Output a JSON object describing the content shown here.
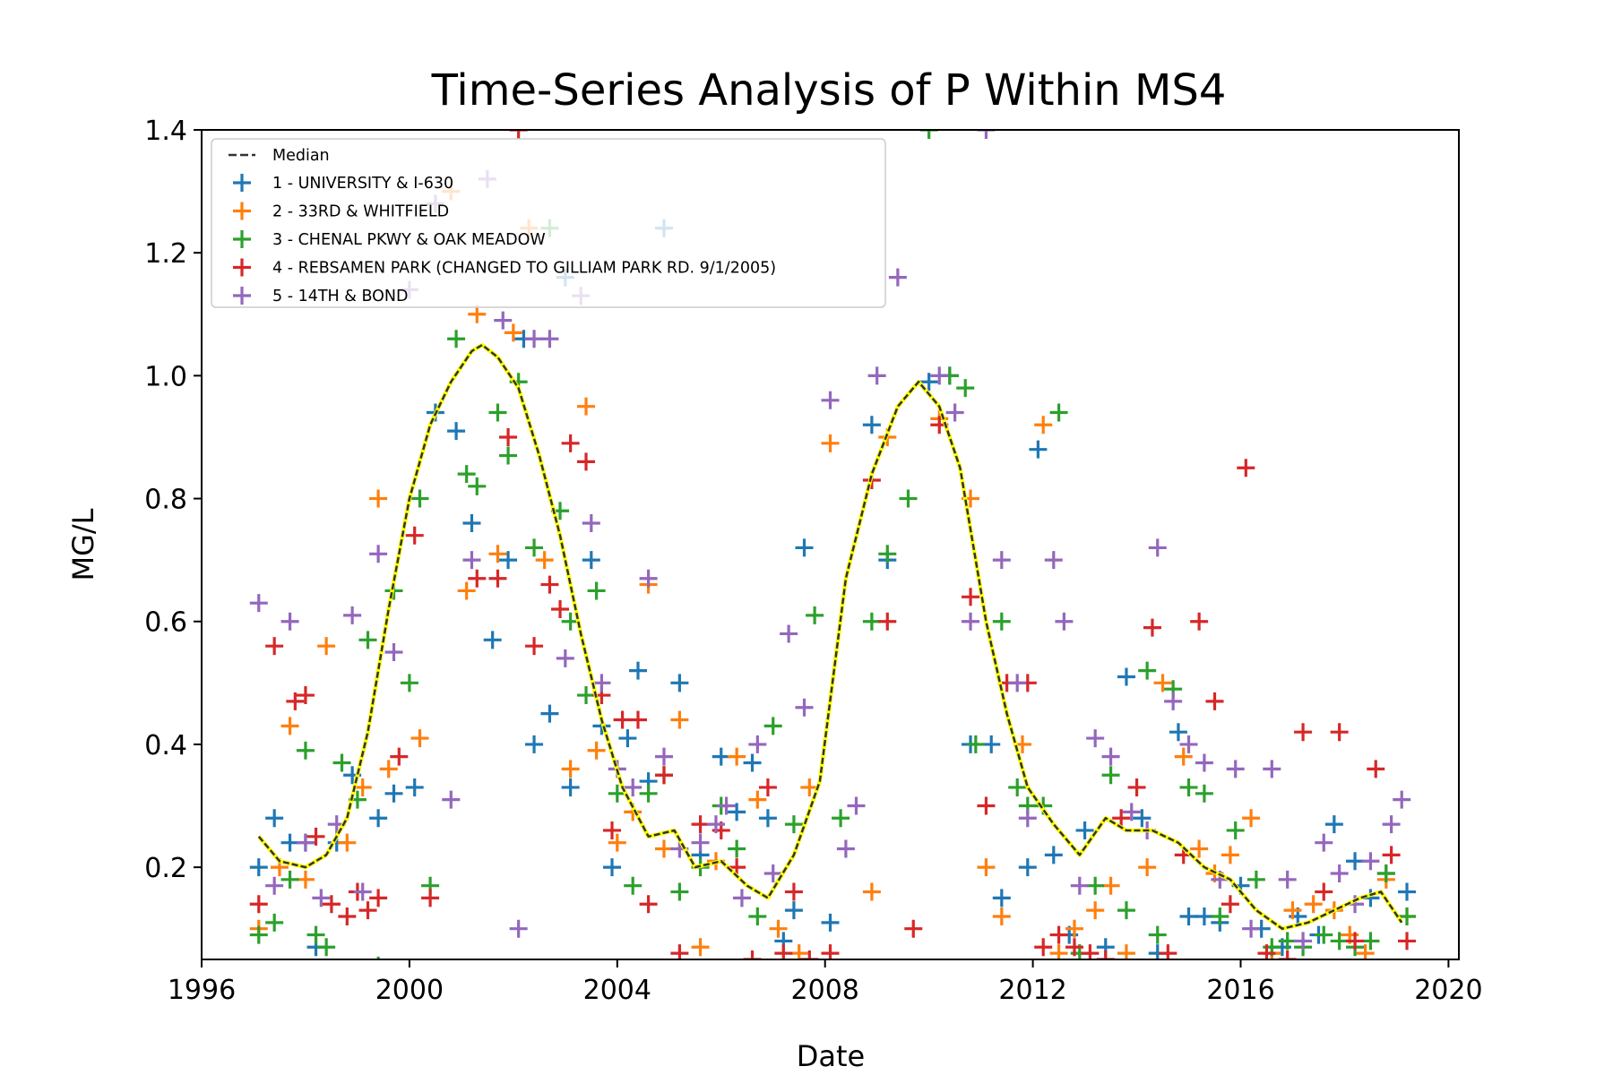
{
  "chart_data": {
    "type": "scatter",
    "title": "Time-Series Analysis of P Within MS4",
    "xlabel": "Date",
    "ylabel": "MG/L",
    "xlim": [
      1996,
      2020.2
    ],
    "ylim": [
      0.05,
      1.4
    ],
    "x_ticks": [
      1996,
      2000,
      2004,
      2008,
      2012,
      2016,
      2020
    ],
    "x_tick_labels": [
      "1996",
      "2000",
      "2004",
      "2008",
      "2012",
      "2016",
      "2020"
    ],
    "y_ticks": [
      0.2,
      0.4,
      0.6,
      0.8,
      1.0,
      1.2,
      1.4
    ],
    "y_tick_labels": [
      "0.2",
      "0.4",
      "0.6",
      "0.8",
      "1.0",
      "1.2",
      "1.4"
    ],
    "legend_position": "upper-left",
    "median": {
      "name": "Median",
      "color": "#333333",
      "highlight_color": "#ffff00",
      "x": [
        1997.1,
        1997.5,
        1998.0,
        1998.4,
        1998.8,
        1999.2,
        1999.6,
        2000.0,
        2000.4,
        2000.8,
        2001.2,
        2001.4,
        2001.7,
        2002.1,
        2002.5,
        2002.9,
        2003.3,
        2003.7,
        2004.1,
        2004.6,
        2005.1,
        2005.5,
        2006.0,
        2006.5,
        2006.9,
        2007.4,
        2007.9,
        2008.4,
        2008.9,
        2009.4,
        2009.8,
        2010.2,
        2010.6,
        2011.1,
        2011.5,
        2011.9,
        2012.4,
        2012.9,
        2013.4,
        2013.8,
        2014.3,
        2014.8,
        2015.3,
        2015.8,
        2016.3,
        2016.8,
        2017.3,
        2017.8,
        2018.3,
        2018.7,
        2019.1
      ],
      "y": [
        0.25,
        0.21,
        0.2,
        0.22,
        0.28,
        0.42,
        0.62,
        0.8,
        0.92,
        0.99,
        1.04,
        1.05,
        1.03,
        0.98,
        0.87,
        0.74,
        0.58,
        0.44,
        0.33,
        0.25,
        0.26,
        0.2,
        0.21,
        0.17,
        0.15,
        0.22,
        0.34,
        0.67,
        0.84,
        0.95,
        0.99,
        0.95,
        0.85,
        0.6,
        0.45,
        0.33,
        0.27,
        0.22,
        0.28,
        0.26,
        0.26,
        0.24,
        0.2,
        0.18,
        0.13,
        0.1,
        0.11,
        0.13,
        0.15,
        0.16,
        0.11
      ]
    },
    "series": [
      {
        "name": "1 - UNIVERSITY & I-630",
        "color": "#1f77b4",
        "x": [
          1997.1,
          1997.4,
          1997.7,
          1998.0,
          1998.2,
          1998.6,
          1998.9,
          1999.4,
          1999.7,
          2000.1,
          2000.5,
          2000.9,
          2001.2,
          2001.6,
          2001.9,
          2002.2,
          2002.4,
          2002.7,
          2003.0,
          2003.1,
          2003.5,
          2003.7,
          2003.9,
          2004.2,
          2004.4,
          2004.6,
          2004.9,
          2005.2,
          2005.6,
          2006.0,
          2006.3,
          2006.6,
          2006.9,
          2007.2,
          2007.4,
          2007.6,
          2008.1,
          2008.9,
          2009.2,
          2010.0,
          2010.4,
          2010.8,
          2011.2,
          2011.4,
          2011.9,
          2012.1,
          2012.4,
          2012.7,
          2013.0,
          2013.4,
          2013.8,
          2014.1,
          2014.4,
          2014.8,
          2015.0,
          2015.3,
          2015.6,
          2016.0,
          2016.4,
          2016.8,
          2017.1,
          2017.5,
          2017.8,
          2018.2,
          2018.5,
          2018.8,
          2019.2
        ],
        "y": [
          0.2,
          0.28,
          0.24,
          0.24,
          0.07,
          0.24,
          0.35,
          0.28,
          0.32,
          0.33,
          0.94,
          0.91,
          0.76,
          0.57,
          0.7,
          1.06,
          0.4,
          0.45,
          1.16,
          0.33,
          0.7,
          0.43,
          0.2,
          0.41,
          0.52,
          0.34,
          1.24,
          0.5,
          0.22,
          0.38,
          0.29,
          0.37,
          0.28,
          0.08,
          0.13,
          0.72,
          0.11,
          0.92,
          0.7,
          0.99,
          1.0,
          0.4,
          0.4,
          0.15,
          0.2,
          0.88,
          0.22,
          0.09,
          0.26,
          0.07,
          0.51,
          0.28,
          0.06,
          0.42,
          0.12,
          0.12,
          0.11,
          0.17,
          0.1,
          0.07,
          0.12,
          0.09,
          0.27,
          0.21,
          0.15,
          0.19,
          0.16
        ]
      },
      {
        "name": "2 - 33RD & WHITFIELD",
        "color": "#ff7f0e",
        "x": [
          1997.1,
          1997.5,
          1997.7,
          1998.0,
          1998.4,
          1998.8,
          1999.1,
          1999.4,
          1999.6,
          2000.2,
          2000.8,
          2001.1,
          2001.3,
          2001.7,
          2002.0,
          2002.3,
          2002.6,
          2003.1,
          2003.4,
          2003.6,
          2004.0,
          2004.3,
          2004.6,
          2004.9,
          2005.2,
          2005.6,
          2005.9,
          2006.3,
          2006.7,
          2007.1,
          2007.5,
          2007.7,
          2008.1,
          2008.9,
          2009.2,
          2010.2,
          2010.8,
          2011.1,
          2011.4,
          2011.8,
          2012.2,
          2012.5,
          2012.8,
          2013.2,
          2013.5,
          2013.8,
          2014.2,
          2014.5,
          2014.9,
          2015.2,
          2015.5,
          2015.8,
          2016.2,
          2016.6,
          2017.0,
          2017.4,
          2017.8,
          2018.1,
          2018.4,
          2018.8,
          2019.2
        ],
        "y": [
          0.1,
          0.2,
          0.43,
          0.18,
          0.56,
          0.24,
          0.33,
          0.8,
          0.36,
          0.41,
          1.3,
          0.65,
          1.1,
          0.71,
          1.07,
          1.24,
          0.7,
          0.36,
          0.95,
          0.39,
          0.24,
          0.29,
          0.66,
          0.23,
          0.44,
          0.07,
          0.21,
          0.38,
          0.31,
          0.1,
          0.06,
          0.33,
          0.89,
          0.16,
          0.9,
          0.93,
          0.8,
          0.2,
          0.12,
          0.4,
          0.92,
          0.06,
          0.1,
          0.13,
          0.17,
          0.06,
          0.2,
          0.5,
          0.38,
          0.23,
          0.19,
          0.22,
          0.28,
          0.06,
          0.13,
          0.14,
          0.13,
          0.09,
          0.06,
          0.18,
          0.12
        ]
      },
      {
        "name": "3 - CHENAL PKWY & OAK MEADOW",
        "color": "#2ca02c",
        "x": [
          1997.1,
          1997.4,
          1997.7,
          1998.0,
          1998.2,
          1998.4,
          1998.7,
          1999.0,
          1999.2,
          1999.4,
          1999.7,
          2000.0,
          2000.2,
          2000.4,
          2000.9,
          2001.1,
          2001.3,
          2001.7,
          2001.9,
          2002.1,
          2002.4,
          2002.7,
          2002.9,
          2003.1,
          2003.4,
          2003.6,
          2004.0,
          2004.3,
          2004.6,
          2004.9,
          2005.2,
          2005.6,
          2006.0,
          2006.3,
          2006.7,
          2007.0,
          2007.4,
          2007.8,
          2008.3,
          2008.9,
          2009.2,
          2009.6,
          2010.0,
          2010.4,
          2010.7,
          2010.9,
          2011.4,
          2011.7,
          2011.9,
          2012.2,
          2012.5,
          2012.9,
          2013.2,
          2013.5,
          2013.8,
          2014.2,
          2014.4,
          2014.7,
          2015.0,
          2015.3,
          2015.6,
          2015.9,
          2016.3,
          2016.6,
          2016.9,
          2017.2,
          2017.6,
          2017.9,
          2018.2,
          2018.5,
          2018.8,
          2019.2
        ],
        "y": [
          0.09,
          0.11,
          0.18,
          0.39,
          0.09,
          0.07,
          0.37,
          0.31,
          0.57,
          0.04,
          0.65,
          0.5,
          0.8,
          0.17,
          1.06,
          0.84,
          0.82,
          0.94,
          0.87,
          0.99,
          0.72,
          1.24,
          0.78,
          0.6,
          0.48,
          0.65,
          0.32,
          0.17,
          0.32,
          0.35,
          0.16,
          0.2,
          0.3,
          0.23,
          0.12,
          0.43,
          0.27,
          0.61,
          0.28,
          0.6,
          0.71,
          0.8,
          1.4,
          1.0,
          0.98,
          0.4,
          0.6,
          0.33,
          0.3,
          0.3,
          0.94,
          0.06,
          0.17,
          0.35,
          0.13,
          0.52,
          0.09,
          0.49,
          0.33,
          0.32,
          0.12,
          0.26,
          0.18,
          0.07,
          0.08,
          0.07,
          0.09,
          0.08,
          0.07,
          0.08,
          0.19,
          0.12
        ]
      },
      {
        "name": "4 - REBSAMEN PARK (CHANGED TO GILLIAM PARK RD. 9/1/2005)",
        "color": "#d62728",
        "x": [
          1997.1,
          1997.4,
          1997.8,
          1998.0,
          1998.2,
          1998.5,
          1998.8,
          1999.0,
          1999.2,
          1999.4,
          1999.8,
          2000.1,
          2000.4,
          2001.3,
          2001.7,
          2001.9,
          2002.1,
          2002.4,
          2002.7,
          2002.9,
          2003.1,
          2003.4,
          2003.7,
          2003.9,
          2004.1,
          2004.4,
          2004.6,
          2004.9,
          2005.2,
          2005.6,
          2006.0,
          2006.3,
          2006.6,
          2006.9,
          2007.2,
          2007.4,
          2007.7,
          2008.1,
          2008.9,
          2009.2,
          2009.7,
          2010.2,
          2010.8,
          2011.1,
          2011.5,
          2011.9,
          2012.2,
          2012.5,
          2012.8,
          2013.1,
          2013.4,
          2013.7,
          2014.0,
          2014.3,
          2014.6,
          2014.9,
          2015.2,
          2015.5,
          2015.8,
          2016.1,
          2016.5,
          2016.9,
          2017.2,
          2017.6,
          2017.9,
          2018.2,
          2018.6,
          2018.9,
          2019.2
        ],
        "y": [
          0.14,
          0.56,
          0.47,
          0.48,
          0.25,
          0.14,
          0.12,
          0.16,
          0.13,
          0.15,
          0.38,
          0.74,
          0.15,
          0.67,
          0.67,
          0.9,
          1.4,
          0.56,
          0.66,
          0.62,
          0.89,
          0.86,
          0.48,
          0.26,
          0.44,
          0.44,
          0.14,
          0.35,
          0.06,
          0.27,
          0.26,
          0.2,
          0.05,
          0.33,
          0.06,
          0.16,
          0.05,
          0.06,
          0.83,
          0.6,
          0.1,
          0.92,
          0.64,
          0.3,
          0.5,
          0.5,
          0.07,
          0.09,
          0.07,
          0.06,
          0.05,
          0.28,
          0.33,
          0.59,
          0.06,
          0.22,
          0.6,
          0.47,
          0.14,
          0.85,
          0.06,
          0.05,
          0.42,
          0.16,
          0.42,
          0.08,
          0.36,
          0.22,
          0.08
        ]
      },
      {
        "name": "5 - 14TH & BOND",
        "color": "#9467bd",
        "x": [
          1997.1,
          1997.4,
          1997.7,
          1998.0,
          1998.3,
          1998.6,
          1998.9,
          1999.1,
          1999.4,
          1999.7,
          2000.0,
          2000.5,
          2000.8,
          2001.2,
          2001.5,
          2001.8,
          2002.1,
          2002.4,
          2002.7,
          2003.0,
          2003.3,
          2003.5,
          2003.7,
          2004.0,
          2004.3,
          2004.6,
          2004.9,
          2005.2,
          2005.6,
          2005.9,
          2006.1,
          2006.4,
          2006.7,
          2007.0,
          2007.3,
          2007.6,
          2008.1,
          2008.4,
          2008.6,
          2009.0,
          2009.4,
          2010.2,
          2010.5,
          2010.8,
          2011.1,
          2011.4,
          2011.7,
          2011.9,
          2012.4,
          2012.6,
          2012.9,
          2013.2,
          2013.5,
          2013.9,
          2014.2,
          2014.4,
          2014.7,
          2015.0,
          2015.3,
          2015.6,
          2015.9,
          2016.2,
          2016.6,
          2016.9,
          2017.2,
          2017.6,
          2017.9,
          2018.2,
          2018.5,
          2018.9,
          2019.1
        ],
        "y": [
          0.63,
          0.17,
          0.6,
          0.24,
          0.15,
          0.27,
          0.61,
          0.16,
          0.71,
          0.55,
          1.14,
          1.28,
          0.31,
          0.7,
          1.32,
          1.09,
          0.1,
          1.06,
          1.06,
          0.54,
          1.13,
          0.76,
          0.5,
          0.36,
          0.33,
          0.67,
          0.38,
          0.23,
          0.24,
          0.27,
          0.3,
          0.15,
          0.4,
          0.19,
          0.58,
          0.46,
          0.96,
          0.23,
          0.3,
          1.0,
          1.16,
          1.0,
          0.94,
          0.6,
          1.4,
          0.7,
          0.5,
          0.28,
          0.7,
          0.6,
          0.17,
          0.41,
          0.38,
          0.29,
          0.26,
          0.72,
          0.47,
          0.4,
          0.37,
          0.18,
          0.36,
          0.1,
          0.36,
          0.18,
          0.08,
          0.24,
          0.19,
          0.14,
          0.21,
          0.27,
          0.31
        ]
      }
    ]
  }
}
